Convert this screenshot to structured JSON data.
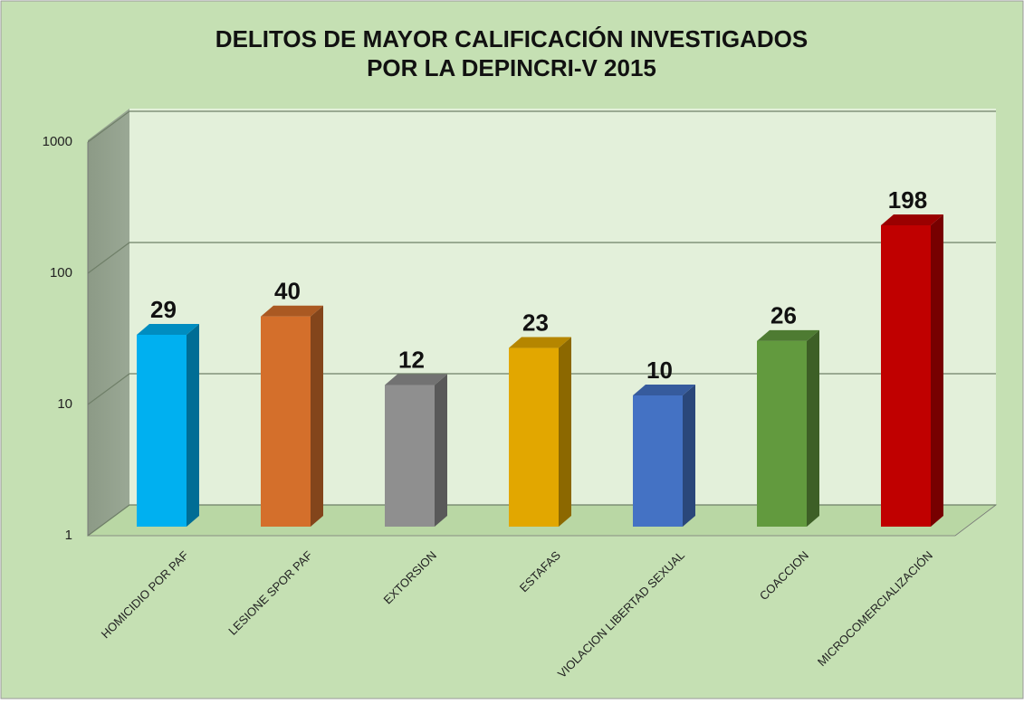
{
  "chart_data": {
    "type": "bar3d",
    "title": [
      "DELITOS DE MAYOR CALIFICACIÓN INVESTIGADOS",
      "POR LA DEPINCRI-V 2015"
    ],
    "categories": [
      "HOMICIDIO POR PAF",
      "LESIONE SPOR PAF",
      "EXTORSION",
      "ESTAFAS",
      "VIOLACION  LIBERTAD SEXUAL",
      "COACCION",
      "MICROCOMERCIALIZACIÓN"
    ],
    "values": [
      29,
      40,
      12,
      23,
      10,
      26,
      198
    ],
    "colors": [
      "#00b0f0",
      "#d46f2b",
      "#8f8f8f",
      "#e2a700",
      "#4472c4",
      "#629a3e",
      "#c00000"
    ],
    "ylim": [
      1,
      1000
    ],
    "yticks": [
      1,
      10,
      100,
      1000
    ],
    "log_scale": true,
    "grid": true
  }
}
